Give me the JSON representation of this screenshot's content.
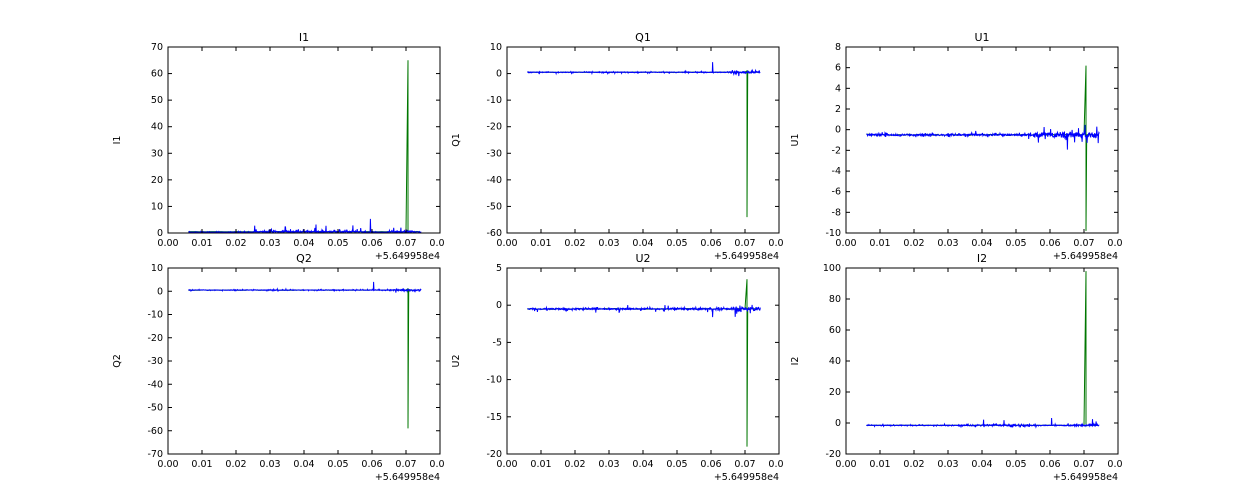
{
  "figure": {
    "background": "#ffffff",
    "axes_color": "#000000",
    "signal_color": "#0000ff",
    "cal_color": "#007700",
    "x_axis_offset": "+5.649958e4"
  },
  "chart_data": [
    {
      "type": "line",
      "title": "I1",
      "ylabel": "I1",
      "xlabel": "",
      "xlim": [
        0.0,
        0.08
      ],
      "ylim": [
        0,
        70
      ],
      "xticks": [
        "0.00",
        "0.01",
        "0.02",
        "0.03",
        "0.04",
        "0.05",
        "0.06",
        "0.07",
        "0.08"
      ],
      "yticks": [
        0,
        10,
        20,
        30,
        40,
        50,
        60,
        70
      ],
      "x_offset_text": "+5.649958e4",
      "x_data_range": [
        0.006,
        0.0745
      ],
      "series": [
        {
          "name": "cal",
          "color": "#007700",
          "baseline": 0.5,
          "spike": {
            "x": 0.0706,
            "y_min": 0.3,
            "y_max": 65
          }
        },
        {
          "name": "signal",
          "color": "#0000ff",
          "baseline": 0.5,
          "noise": 0.35,
          "positive": true,
          "noise_regions": [
            [
              0.025,
              0.057,
              0.9
            ],
            [
              0.065,
              0.074,
              0.6
            ]
          ],
          "spikes": [
            [
              0.0345,
              2.3
            ],
            [
              0.0435,
              3.2
            ],
            [
              0.0465,
              2.7
            ],
            [
              0.0595,
              5.3
            ],
            [
              0.0685,
              2.0
            ]
          ]
        }
      ]
    },
    {
      "type": "line",
      "title": "Q1",
      "ylabel": "Q1",
      "xlabel": "",
      "xlim": [
        0.0,
        0.08
      ],
      "ylim": [
        -60,
        10
      ],
      "xticks": [
        "0.00",
        "0.01",
        "0.02",
        "0.03",
        "0.04",
        "0.05",
        "0.06",
        "0.07",
        "0.08"
      ],
      "yticks": [
        10,
        0,
        -10,
        -20,
        -30,
        -40,
        -50,
        -60
      ],
      "x_offset_text": "+5.649958e4",
      "x_data_range": [
        0.006,
        0.0745
      ],
      "series": [
        {
          "name": "cal",
          "color": "#007700",
          "baseline": 0.5,
          "spike": {
            "x": 0.0706,
            "y_min": -54,
            "y_max": 1.0
          }
        },
        {
          "name": "signal",
          "color": "#0000ff",
          "baseline": 0.5,
          "noise": 0.3,
          "positive": false,
          "noise_regions": [
            [
              0.065,
              0.0745,
              0.5
            ]
          ],
          "spikes": [
            [
              0.0605,
              4.3
            ]
          ]
        }
      ]
    },
    {
      "type": "line",
      "title": "U1",
      "ylabel": "U1",
      "xlabel": "",
      "xlim": [
        0.0,
        0.08
      ],
      "ylim": [
        -10,
        8
      ],
      "xticks": [
        "0.00",
        "0.01",
        "0.02",
        "0.03",
        "0.04",
        "0.05",
        "0.06",
        "0.07",
        "0.08"
      ],
      "yticks": [
        8,
        6,
        4,
        2,
        0,
        -2,
        -4,
        -6,
        -8,
        -10
      ],
      "x_offset_text": "+5.649958e4",
      "x_data_range": [
        0.006,
        0.0745
      ],
      "series": [
        {
          "name": "cal",
          "color": "#007700",
          "baseline": -0.5,
          "spike": {
            "x": 0.0706,
            "y_min": -9.8,
            "y_max": 6.2
          }
        },
        {
          "name": "signal",
          "color": "#0000ff",
          "baseline": -0.5,
          "noise": 0.22,
          "positive": false,
          "noise_regions": [
            [
              0.055,
              0.0745,
              0.55
            ]
          ],
          "spikes": [
            [
              0.0738,
              0.3
            ],
            [
              0.0742,
              -1.3
            ]
          ]
        }
      ]
    },
    {
      "type": "line",
      "title": "Q2",
      "ylabel": "Q2",
      "xlabel": "",
      "xlim": [
        0.0,
        0.08
      ],
      "ylim": [
        -70,
        10
      ],
      "xticks": [
        "0.00",
        "0.01",
        "0.02",
        "0.03",
        "0.04",
        "0.05",
        "0.06",
        "0.07",
        "0.08"
      ],
      "yticks": [
        10,
        0,
        -10,
        -20,
        -30,
        -40,
        -50,
        -60,
        -70
      ],
      "x_offset_text": "+5.649958e4",
      "x_data_range": [
        0.006,
        0.0745
      ],
      "series": [
        {
          "name": "cal",
          "color": "#007700",
          "baseline": 0.5,
          "spike": {
            "x": 0.0706,
            "y_min": -59,
            "y_max": 1.0
          }
        },
        {
          "name": "signal",
          "color": "#0000ff",
          "baseline": 0.5,
          "noise": 0.3,
          "positive": false,
          "noise_regions": [
            [
              0.065,
              0.0745,
              0.4
            ]
          ],
          "spikes": [
            [
              0.0605,
              4.0
            ]
          ]
        }
      ]
    },
    {
      "type": "line",
      "title": "U2",
      "ylabel": "U2",
      "xlabel": "",
      "xlim": [
        0.0,
        0.08
      ],
      "ylim": [
        -20,
        5
      ],
      "xticks": [
        "0.00",
        "0.01",
        "0.02",
        "0.03",
        "0.04",
        "0.05",
        "0.06",
        "0.07",
        "0.08"
      ],
      "yticks": [
        5,
        0,
        -5,
        -10,
        -15,
        -20
      ],
      "x_offset_text": "+5.649958e4",
      "x_data_range": [
        0.006,
        0.0745
      ],
      "series": [
        {
          "name": "cal",
          "color": "#007700",
          "baseline": -0.5,
          "spike": {
            "x": 0.0706,
            "y_min": -19,
            "y_max": 3.5
          }
        },
        {
          "name": "signal",
          "color": "#0000ff",
          "baseline": -0.5,
          "noise": 0.25,
          "positive": false,
          "noise_regions": [
            [
              0.067,
              0.0745,
              0.5
            ]
          ],
          "spikes": [
            [
              0.0605,
              -1.6
            ]
          ]
        }
      ]
    },
    {
      "type": "line",
      "title": "I2",
      "ylabel": "I2",
      "xlabel": "",
      "xlim": [
        0.0,
        0.08
      ],
      "ylim": [
        -20,
        100
      ],
      "xticks": [
        "0.00",
        "0.01",
        "0.02",
        "0.03",
        "0.04",
        "0.05",
        "0.06",
        "0.07",
        "0.08"
      ],
      "yticks": [
        100,
        80,
        60,
        40,
        20,
        0,
        -20
      ],
      "x_offset_text": "+5.649958e4",
      "x_data_range": [
        0.006,
        0.0745
      ],
      "series": [
        {
          "name": "cal",
          "color": "#007700",
          "baseline": -1.5,
          "spike": {
            "x": 0.0706,
            "y_min": -2,
            "y_max": 98
          }
        },
        {
          "name": "signal",
          "color": "#0000ff",
          "baseline": -1.5,
          "noise": 0.5,
          "positive": false,
          "noise_regions": [
            [
              0.033,
              0.056,
              0.9
            ],
            [
              0.064,
              0.0745,
              0.8
            ]
          ],
          "spikes": [
            [
              0.0405,
              2.2
            ],
            [
              0.0465,
              1.8
            ],
            [
              0.0605,
              3.2
            ],
            [
              0.0725,
              2.5
            ]
          ]
        }
      ]
    }
  ]
}
